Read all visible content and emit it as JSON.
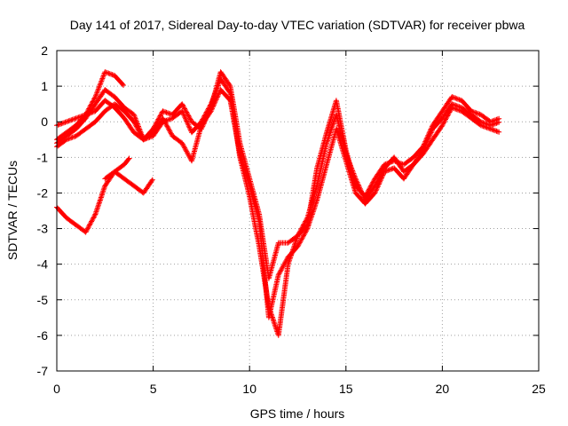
{
  "chart_data": {
    "type": "scatter",
    "title": "Day 141 of 2017, Sidereal Day-to-day VTEC variation (SDTVAR) for receiver pbwa",
    "xlabel": "GPS time / hours",
    "ylabel": "SDTVAR / TECUs",
    "xlim": [
      0,
      25
    ],
    "ylim": [
      -7,
      2
    ],
    "xticks": [
      "0",
      "5",
      "10",
      "15",
      "20",
      "25"
    ],
    "yticks": [
      "-7",
      "-6",
      "-5",
      "-4",
      "-3",
      "-2",
      "-1",
      "0",
      "1",
      "2"
    ],
    "grid": true,
    "marker": "+",
    "marker_color": "#ff0000",
    "series": [
      {
        "x": [
          0,
          0.5,
          1.0,
          1.5,
          2.0,
          2.5,
          3.0,
          3.5,
          4.0,
          4.5,
          5.0,
          5.5,
          6.0,
          6.5,
          7.0,
          7.5,
          8.0,
          8.5,
          9.0,
          9.5,
          10.0,
          10.5,
          11.0,
          11.5,
          12.0,
          12.5,
          13.0,
          13.5,
          14.0,
          14.5,
          15.0,
          15.5,
          16.0,
          16.5,
          17.0,
          17.5,
          18.0,
          18.5,
          19.0,
          19.5,
          20.0,
          20.5,
          21.0,
          21.5,
          22.0,
          22.5,
          23.0
        ],
        "y": [
          -0.1,
          0.0,
          0.1,
          0.2,
          0.7,
          1.4,
          1.3,
          1.0,
          null,
          null,
          null,
          null,
          null,
          null,
          null,
          null,
          null,
          null,
          null,
          null,
          null,
          null,
          null,
          null,
          null,
          null,
          null,
          null,
          null,
          null,
          null,
          null,
          null,
          null,
          null,
          null,
          null,
          null,
          null,
          null,
          null,
          null,
          null,
          null,
          null,
          null,
          null
        ]
      },
      {
        "x": [
          0,
          0.5,
          1.0,
          1.5,
          2.0,
          2.5,
          3.0,
          3.5,
          4.0,
          4.5,
          5.0,
          5.5,
          6.0,
          6.5,
          7.0,
          7.5,
          8.0,
          8.5,
          9.0,
          9.5,
          10.0,
          10.5,
          11.0,
          11.5,
          12.0,
          12.5,
          13.0,
          13.5,
          14.0,
          14.5,
          15.0,
          15.5,
          16.0,
          16.5,
          17.0,
          17.5,
          18.0,
          18.5,
          19.0,
          19.5,
          20.0,
          20.5,
          21.0,
          21.5,
          22.0,
          22.5,
          23.0
        ],
        "y": [
          -0.6,
          -0.4,
          -0.2,
          0.1,
          0.5,
          0.9,
          0.7,
          0.4,
          0.2,
          -0.5,
          -0.2,
          0.3,
          0.2,
          0.5,
          0.0,
          -0.2,
          0.4,
          1.4,
          1.0,
          -0.6,
          -1.6,
          -2.6,
          -4.4,
          -3.4,
          -3.4,
          -3.2,
          -2.9,
          -1.3,
          -0.3,
          0.6,
          -0.8,
          -1.8,
          -2.1,
          -1.6,
          -1.2,
          -1.1,
          -1.2,
          -1.0,
          -0.7,
          -0.1,
          0.3,
          0.7,
          0.6,
          0.3,
          0.2,
          0.0,
          0.1
        ]
      },
      {
        "x": [
          0,
          0.5,
          1.0,
          1.5,
          2.0,
          2.5,
          3.0,
          3.5,
          4.0,
          4.5,
          5.0,
          5.5,
          6.0,
          6.5,
          7.0,
          7.5,
          8.0,
          8.5,
          9.0,
          9.5,
          10.0,
          10.5,
          11.0,
          11.5,
          12.0,
          12.5,
          13.0,
          13.5,
          14.0,
          14.5,
          15.0,
          15.5,
          16.0,
          16.5,
          17.0,
          17.5,
          18.0,
          18.5,
          19.0,
          19.5,
          20.0,
          20.5,
          21.0,
          21.5,
          22.0,
          22.5,
          23.0
        ],
        "y": [
          -0.7,
          -0.5,
          -0.4,
          -0.2,
          0.0,
          0.3,
          0.5,
          0.3,
          0.0,
          -0.5,
          -0.3,
          0.1,
          -0.4,
          -0.6,
          -1.1,
          -0.1,
          0.3,
          0.9,
          0.6,
          -0.9,
          -1.8,
          -2.8,
          -5.5,
          -4.3,
          -3.8,
          -3.5,
          -3.0,
          -2.2,
          -1.2,
          -0.2,
          -1.1,
          -2.0,
          -2.3,
          -2.0,
          -1.4,
          -1.3,
          -1.6,
          -1.2,
          -0.9,
          -0.5,
          -0.1,
          0.4,
          0.3,
          0.1,
          -0.1,
          -0.2,
          -0.3
        ]
      },
      {
        "x": [
          0,
          0.5,
          1.0,
          1.5,
          2.0,
          2.5,
          3.0,
          3.5,
          4.0,
          4.5,
          5.0,
          5.5,
          6.0,
          6.5,
          7.0,
          7.5,
          8.0,
          8.5,
          9.0,
          9.5,
          10.0,
          10.5,
          11.0,
          11.5,
          12.0,
          12.5,
          13.0,
          13.5,
          14.0,
          14.5,
          15.0,
          15.5,
          16.0,
          16.5,
          17.0,
          17.5,
          18.0,
          18.5,
          19.0,
          19.5,
          20.0,
          20.5,
          21.0,
          21.5,
          22.0,
          22.5,
          23.0
        ],
        "y": [
          -0.5,
          -0.3,
          -0.1,
          0.2,
          0.3,
          0.6,
          0.4,
          0.1,
          -0.3,
          -0.5,
          -0.4,
          0.0,
          0.1,
          0.3,
          -0.3,
          0.0,
          0.5,
          1.2,
          0.8,
          -1.0,
          -2.1,
          -3.5,
          -5.2,
          -6.0,
          -4.0,
          -3.2,
          -2.7,
          -1.8,
          -0.6,
          0.2,
          -0.9,
          -1.6,
          -2.2,
          -1.8,
          -1.3,
          -1.0,
          -1.4,
          -1.2,
          -0.8,
          -0.2,
          0.1,
          0.5,
          0.4,
          0.2,
          0.0,
          -0.1,
          0.0
        ]
      },
      {
        "x": [
          0,
          0.5,
          1.0,
          1.5,
          2.0,
          2.5,
          3.0,
          3.5,
          4.0,
          4.5,
          5.0
        ],
        "y": [
          -2.4,
          -2.7,
          -2.9,
          -3.1,
          -2.6,
          -1.8,
          -1.4,
          -1.6,
          -1.8,
          -2.0,
          -1.6
        ]
      },
      {
        "x": [
          2.5,
          3.0,
          3.5,
          3.8
        ],
        "y": [
          -1.6,
          -1.4,
          -1.2,
          -1.0
        ]
      }
    ]
  }
}
